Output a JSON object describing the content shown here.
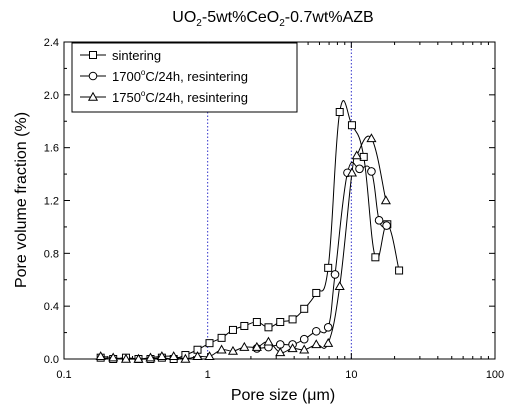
{
  "chart_data": {
    "type": "line",
    "title_parts": {
      "a": "UO",
      "b": "2",
      "c": "-5wt%CeO",
      "d": "2",
      "e": "-0.7wt%AZB"
    },
    "xlabel": "Pore size (",
    "xlabel_mu": "μ",
    "xlabel_end": "m)",
    "ylabel": "Pore volume fraction (%)",
    "x_scale": "log",
    "xlim": [
      0.1,
      100
    ],
    "ylim": [
      0.0,
      2.4
    ],
    "x_ticks": [
      {
        "value": 0.1,
        "label": "0.1"
      },
      {
        "value": 1,
        "label": "1"
      },
      {
        "value": 10,
        "label": "10"
      },
      {
        "value": 100,
        "label": "100"
      }
    ],
    "y_ticks": [
      {
        "value": 0.0,
        "label": "0.0"
      },
      {
        "value": 0.4,
        "label": "0.4"
      },
      {
        "value": 0.8,
        "label": "0.8"
      },
      {
        "value": 1.2,
        "label": "1.2"
      },
      {
        "value": 1.6,
        "label": "1.6"
      },
      {
        "value": 2.0,
        "label": "2.0"
      },
      {
        "value": 2.4,
        "label": "2.4"
      }
    ],
    "reference_lines_x": [
      1,
      10
    ],
    "legend_position": "top-left",
    "series": [
      {
        "legend": {
          "a": "sintering"
        },
        "marker": "square",
        "points": [
          [
            0.18,
            0.01
          ],
          [
            0.22,
            0.0
          ],
          [
            0.27,
            0.01
          ],
          [
            0.33,
            0.0
          ],
          [
            0.4,
            0.0
          ],
          [
            0.48,
            0.01
          ],
          [
            0.58,
            0.0
          ],
          [
            0.7,
            0.03
          ],
          [
            0.85,
            0.07
          ],
          [
            1.03,
            0.12
          ],
          [
            1.25,
            0.16
          ],
          [
            1.5,
            0.22
          ],
          [
            1.8,
            0.25
          ],
          [
            2.2,
            0.28
          ],
          [
            2.65,
            0.24
          ],
          [
            3.2,
            0.28
          ],
          [
            3.9,
            0.3
          ],
          [
            4.7,
            0.38
          ],
          [
            5.7,
            0.5
          ],
          [
            6.9,
            0.69
          ],
          [
            8.3,
            1.87
          ],
          [
            10.1,
            1.77
          ],
          [
            12.2,
            1.53
          ],
          [
            14.7,
            0.77
          ],
          [
            17.8,
            1.02
          ],
          [
            21.5,
            0.67
          ]
        ]
      },
      {
        "legend": {
          "a": "1700",
          "b": "o",
          "c": "C/24h, resintering"
        },
        "marker": "circle",
        "points": [
          [
            2.2,
            0.08
          ],
          [
            2.65,
            0.09
          ],
          [
            3.2,
            0.11
          ],
          [
            3.9,
            0.11
          ],
          [
            4.7,
            0.15
          ],
          [
            5.7,
            0.21
          ],
          [
            6.9,
            0.24
          ],
          [
            7.7,
            0.64
          ],
          [
            9.4,
            1.41
          ],
          [
            11.4,
            1.44
          ],
          [
            13.8,
            1.42
          ],
          [
            15.6,
            1.05
          ],
          [
            17.6,
            1.01
          ]
        ]
      },
      {
        "legend": {
          "a": "1750",
          "b": "o",
          "c": "C/24h, resintering"
        },
        "marker": "triangle",
        "points": [
          [
            0.18,
            0.02
          ],
          [
            0.22,
            0.01
          ],
          [
            0.27,
            0.0
          ],
          [
            0.33,
            0.0
          ],
          [
            0.4,
            0.01
          ],
          [
            0.48,
            0.02
          ],
          [
            0.58,
            0.02
          ],
          [
            0.7,
            0.0
          ],
          [
            0.85,
            0.02
          ],
          [
            1.03,
            0.02
          ],
          [
            1.25,
            0.07
          ],
          [
            1.5,
            0.06
          ],
          [
            1.8,
            0.09
          ],
          [
            2.2,
            0.09
          ],
          [
            2.65,
            0.13
          ],
          [
            3.2,
            0.05
          ],
          [
            3.9,
            0.08
          ],
          [
            4.7,
            0.07
          ],
          [
            5.7,
            0.11
          ],
          [
            6.9,
            0.12
          ],
          [
            8.3,
            0.55
          ],
          [
            10.1,
            1.41
          ],
          [
            10.9,
            1.54
          ],
          [
            13.8,
            1.67
          ],
          [
            17.4,
            1.2
          ]
        ]
      }
    ]
  }
}
